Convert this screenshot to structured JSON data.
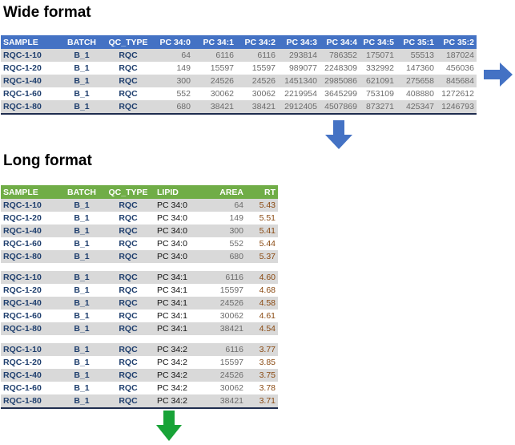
{
  "wide": {
    "title": "Wide format",
    "headers": [
      "SAMPLE",
      "BATCH",
      "QC_TYPE",
      "PC 34:0",
      "PC 34:1",
      "PC 34:2",
      "PC 34:3",
      "PC 34:4",
      "PC 34:5",
      "PC 35:1",
      "PC 35:2"
    ],
    "rows": [
      [
        "RQC-1-10",
        "B_1",
        "RQC",
        "64",
        "6116",
        "6116",
        "293814",
        "786352",
        "175071",
        "55513",
        "187024"
      ],
      [
        "RQC-1-20",
        "B_1",
        "RQC",
        "149",
        "15597",
        "15597",
        "989077",
        "2248309",
        "332992",
        "147360",
        "456036"
      ],
      [
        "RQC-1-40",
        "B_1",
        "RQC",
        "300",
        "24526",
        "24526",
        "1451340",
        "2985086",
        "621091",
        "275658",
        "845684"
      ],
      [
        "RQC-1-60",
        "B_1",
        "RQC",
        "552",
        "30062",
        "30062",
        "2219954",
        "3645299",
        "753109",
        "408880",
        "1272612"
      ],
      [
        "RQC-1-80",
        "B_1",
        "RQC",
        "680",
        "38421",
        "38421",
        "2912405",
        "4507869",
        "873271",
        "425347",
        "1246793"
      ]
    ]
  },
  "long": {
    "title": "Long format",
    "headers": [
      "SAMPLE",
      "BATCH",
      "QC_TYPE",
      "LIPID",
      "AREA",
      "RT"
    ],
    "groups": [
      [
        [
          "RQC-1-10",
          "B_1",
          "RQC",
          "PC 34:0",
          "64",
          "5.43"
        ],
        [
          "RQC-1-20",
          "B_1",
          "RQC",
          "PC 34:0",
          "149",
          "5.51"
        ],
        [
          "RQC-1-40",
          "B_1",
          "RQC",
          "PC 34:0",
          "300",
          "5.41"
        ],
        [
          "RQC-1-60",
          "B_1",
          "RQC",
          "PC 34:0",
          "552",
          "5.44"
        ],
        [
          "RQC-1-80",
          "B_1",
          "RQC",
          "PC 34:0",
          "680",
          "5.37"
        ]
      ],
      [
        [
          "RQC-1-10",
          "B_1",
          "RQC",
          "PC 34:1",
          "6116",
          "4.60"
        ],
        [
          "RQC-1-20",
          "B_1",
          "RQC",
          "PC 34:1",
          "15597",
          "4.68"
        ],
        [
          "RQC-1-40",
          "B_1",
          "RQC",
          "PC 34:1",
          "24526",
          "4.58"
        ],
        [
          "RQC-1-60",
          "B_1",
          "RQC",
          "PC 34:1",
          "30062",
          "4.61"
        ],
        [
          "RQC-1-80",
          "B_1",
          "RQC",
          "PC 34:1",
          "38421",
          "4.54"
        ]
      ],
      [
        [
          "RQC-1-10",
          "B_1",
          "RQC",
          "PC 34:2",
          "6116",
          "3.77"
        ],
        [
          "RQC-1-20",
          "B_1",
          "RQC",
          "PC 34:2",
          "15597",
          "3.85"
        ],
        [
          "RQC-1-40",
          "B_1",
          "RQC",
          "PC 34:2",
          "24526",
          "3.75"
        ],
        [
          "RQC-1-60",
          "B_1",
          "RQC",
          "PC 34:2",
          "30062",
          "3.78"
        ],
        [
          "RQC-1-80",
          "B_1",
          "RQC",
          "PC 34:2",
          "38421",
          "3.71"
        ]
      ]
    ]
  },
  "colors": {
    "wide_header": "#4472c4",
    "long_header": "#70ad47",
    "blue_arrow": "#4472c4",
    "green_arrow": "#18a337",
    "row_shade": "#d9d9d9"
  },
  "icons": {
    "right": "arrow-right-icon",
    "down_blue": "arrow-down-icon",
    "down_green": "arrow-down-icon"
  }
}
